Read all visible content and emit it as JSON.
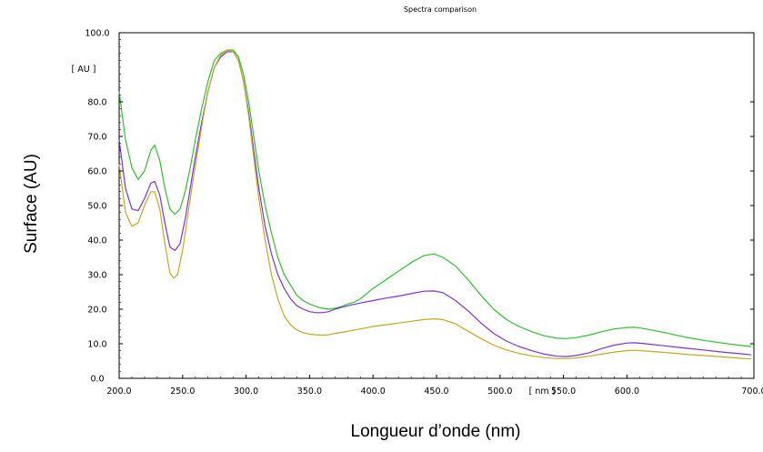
{
  "chart_data": {
    "type": "line",
    "title": "Spectra comparison",
    "xlabel": "Longueur d’onde (nm)",
    "ylabel": "Surface (AU)",
    "x_unit_label": "[ nm ]",
    "y_unit_label": "[ AU ]",
    "xlim": [
      200,
      700
    ],
    "ylim": [
      0,
      100
    ],
    "x_ticks": [
      {
        "value": 200,
        "label": "200.0"
      },
      {
        "value": 250,
        "label": "250.0"
      },
      {
        "value": 300,
        "label": "300.0"
      },
      {
        "value": 350,
        "label": "350.0"
      },
      {
        "value": 400,
        "label": "400.0"
      },
      {
        "value": 450,
        "label": "450.0"
      },
      {
        "value": 500,
        "label": "500.0"
      },
      {
        "value": 550,
        "label": "550.0"
      },
      {
        "value": 600,
        "label": "600.0"
      },
      {
        "value": 700,
        "label": "700.0"
      }
    ],
    "y_ticks": [
      {
        "value": 0,
        "label": "0.0"
      },
      {
        "value": 10,
        "label": "10.0"
      },
      {
        "value": 20,
        "label": "20.0"
      },
      {
        "value": 30,
        "label": "30.0"
      },
      {
        "value": 40,
        "label": "40.0"
      },
      {
        "value": 50,
        "label": "50.0"
      },
      {
        "value": 60,
        "label": "60.0"
      },
      {
        "value": 70,
        "label": "70.0"
      },
      {
        "value": 80,
        "label": "80.0"
      },
      {
        "value": 100,
        "label": "100.0"
      }
    ],
    "grid": false,
    "series": [
      {
        "color": "#2ec22e",
        "points": [
          [
            200,
            83
          ],
          [
            205,
            69
          ],
          [
            210,
            61
          ],
          [
            215,
            57.5
          ],
          [
            220,
            60
          ],
          [
            225,
            66
          ],
          [
            228,
            67.5
          ],
          [
            232,
            63
          ],
          [
            236,
            55
          ],
          [
            240,
            49
          ],
          [
            244,
            47.5
          ],
          [
            248,
            49
          ],
          [
            252,
            54
          ],
          [
            256,
            61
          ],
          [
            260,
            69
          ],
          [
            265,
            78
          ],
          [
            270,
            86
          ],
          [
            275,
            92
          ],
          [
            280,
            94
          ],
          [
            285,
            95
          ],
          [
            290,
            95
          ],
          [
            294,
            93
          ],
          [
            298,
            88
          ],
          [
            302,
            80
          ],
          [
            306,
            70
          ],
          [
            310,
            60
          ],
          [
            315,
            50
          ],
          [
            320,
            42
          ],
          [
            325,
            35
          ],
          [
            330,
            30
          ],
          [
            335,
            27
          ],
          [
            340,
            24
          ],
          [
            345,
            22.5
          ],
          [
            350,
            21.5
          ],
          [
            355,
            20.8
          ],
          [
            360,
            20.3
          ],
          [
            365,
            20
          ],
          [
            370,
            20.3
          ],
          [
            375,
            20.8
          ],
          [
            380,
            21.5
          ],
          [
            385,
            22
          ],
          [
            390,
            23
          ],
          [
            400,
            26
          ],
          [
            410,
            28.5
          ],
          [
            420,
            31
          ],
          [
            430,
            33.5
          ],
          [
            440,
            35.5
          ],
          [
            448,
            36
          ],
          [
            455,
            35
          ],
          [
            465,
            32.5
          ],
          [
            475,
            28.5
          ],
          [
            485,
            24
          ],
          [
            495,
            20
          ],
          [
            505,
            17
          ],
          [
            515,
            15
          ],
          [
            525,
            13.5
          ],
          [
            535,
            12.3
          ],
          [
            545,
            11.6
          ],
          [
            552,
            11.5
          ],
          [
            560,
            11.8
          ],
          [
            570,
            12.5
          ],
          [
            580,
            13.5
          ],
          [
            590,
            14.3
          ],
          [
            600,
            14.7
          ],
          [
            606,
            14.8
          ],
          [
            615,
            14.3
          ],
          [
            630,
            13.2
          ],
          [
            645,
            12
          ],
          [
            660,
            11
          ],
          [
            675,
            10.2
          ],
          [
            690,
            9.5
          ],
          [
            698,
            9.2
          ]
        ]
      },
      {
        "color": "#7a32e0",
        "points": [
          [
            200,
            69
          ],
          [
            205,
            55
          ],
          [
            210,
            49
          ],
          [
            215,
            48.5
          ],
          [
            220,
            52
          ],
          [
            225,
            56.5
          ],
          [
            228,
            57
          ],
          [
            232,
            53
          ],
          [
            236,
            45
          ],
          [
            240,
            38
          ],
          [
            244,
            37
          ],
          [
            248,
            39
          ],
          [
            252,
            46
          ],
          [
            256,
            55
          ],
          [
            260,
            64
          ],
          [
            265,
            74
          ],
          [
            270,
            83
          ],
          [
            275,
            90
          ],
          [
            280,
            93
          ],
          [
            285,
            94.5
          ],
          [
            290,
            94.5
          ],
          [
            294,
            92
          ],
          [
            298,
            86
          ],
          [
            302,
            77
          ],
          [
            306,
            66
          ],
          [
            310,
            55
          ],
          [
            315,
            44
          ],
          [
            320,
            36
          ],
          [
            325,
            30
          ],
          [
            330,
            26
          ],
          [
            335,
            23
          ],
          [
            340,
            21
          ],
          [
            345,
            20
          ],
          [
            350,
            19.3
          ],
          [
            355,
            19
          ],
          [
            360,
            19
          ],
          [
            365,
            19.3
          ],
          [
            370,
            20
          ],
          [
            375,
            20.5
          ],
          [
            380,
            21
          ],
          [
            390,
            21.8
          ],
          [
            400,
            22.5
          ],
          [
            410,
            23.2
          ],
          [
            420,
            23.8
          ],
          [
            430,
            24.5
          ],
          [
            440,
            25.2
          ],
          [
            448,
            25.3
          ],
          [
            455,
            24.8
          ],
          [
            465,
            22.5
          ],
          [
            475,
            19.5
          ],
          [
            485,
            16
          ],
          [
            495,
            13
          ],
          [
            505,
            10.8
          ],
          [
            515,
            9.2
          ],
          [
            525,
            8
          ],
          [
            535,
            7
          ],
          [
            545,
            6.4
          ],
          [
            552,
            6.3
          ],
          [
            560,
            6.6
          ],
          [
            570,
            7.4
          ],
          [
            580,
            8.6
          ],
          [
            590,
            9.6
          ],
          [
            600,
            10.2
          ],
          [
            606,
            10.3
          ],
          [
            615,
            10
          ],
          [
            630,
            9.4
          ],
          [
            645,
            8.8
          ],
          [
            660,
            8.2
          ],
          [
            675,
            7.6
          ],
          [
            690,
            7.1
          ],
          [
            698,
            6.8
          ]
        ]
      },
      {
        "color": "#c8a81e",
        "points": [
          [
            200,
            62
          ],
          [
            205,
            48
          ],
          [
            210,
            44
          ],
          [
            215,
            45
          ],
          [
            220,
            50
          ],
          [
            225,
            54
          ],
          [
            228,
            54
          ],
          [
            232,
            49
          ],
          [
            236,
            39
          ],
          [
            240,
            30.5
          ],
          [
            243,
            29
          ],
          [
            246,
            30
          ],
          [
            250,
            37
          ],
          [
            254,
            47
          ],
          [
            258,
            57
          ],
          [
            262,
            66
          ],
          [
            266,
            75
          ],
          [
            270,
            83
          ],
          [
            275,
            90
          ],
          [
            280,
            93.5
          ],
          [
            285,
            95
          ],
          [
            290,
            94.5
          ],
          [
            294,
            92
          ],
          [
            298,
            86
          ],
          [
            302,
            76
          ],
          [
            306,
            64
          ],
          [
            310,
            52
          ],
          [
            315,
            40
          ],
          [
            320,
            30
          ],
          [
            325,
            23
          ],
          [
            330,
            18
          ],
          [
            335,
            15.5
          ],
          [
            340,
            14
          ],
          [
            345,
            13.2
          ],
          [
            350,
            12.8
          ],
          [
            355,
            12.6
          ],
          [
            360,
            12.5
          ],
          [
            365,
            12.6
          ],
          [
            370,
            13
          ],
          [
            375,
            13.3
          ],
          [
            380,
            13.6
          ],
          [
            390,
            14.3
          ],
          [
            400,
            15
          ],
          [
            410,
            15.5
          ],
          [
            420,
            16
          ],
          [
            430,
            16.5
          ],
          [
            440,
            17
          ],
          [
            448,
            17.2
          ],
          [
            455,
            17
          ],
          [
            465,
            15.8
          ],
          [
            475,
            13.6
          ],
          [
            485,
            11.5
          ],
          [
            495,
            9.6
          ],
          [
            505,
            8.2
          ],
          [
            515,
            7.2
          ],
          [
            525,
            6.5
          ],
          [
            535,
            6
          ],
          [
            545,
            5.7
          ],
          [
            552,
            5.7
          ],
          [
            560,
            5.9
          ],
          [
            570,
            6.4
          ],
          [
            580,
            7
          ],
          [
            590,
            7.6
          ],
          [
            600,
            8
          ],
          [
            606,
            8.1
          ],
          [
            615,
            7.9
          ],
          [
            630,
            7.5
          ],
          [
            645,
            7
          ],
          [
            660,
            6.6
          ],
          [
            675,
            6.2
          ],
          [
            690,
            5.8
          ],
          [
            698,
            5.6
          ]
        ]
      }
    ]
  }
}
